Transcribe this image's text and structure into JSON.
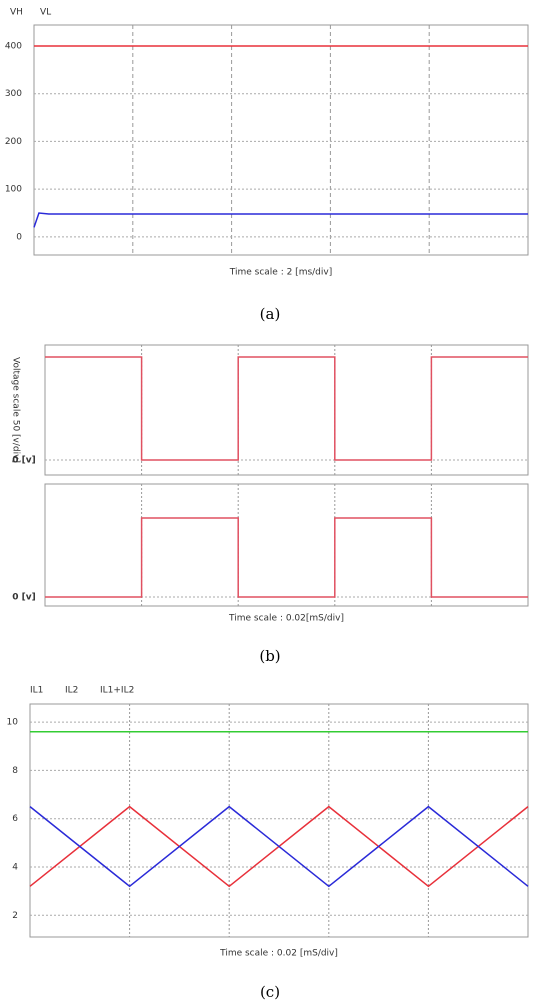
{
  "chart_data": [
    {
      "type": "line",
      "x": [
        0,
        0.05,
        0.15,
        5
      ],
      "xlim": [
        0,
        5
      ],
      "ylim": [
        -38,
        444
      ],
      "yticks": [
        0,
        100,
        200,
        300,
        400
      ],
      "grid": true,
      "legend": "top-left",
      "series": [
        {
          "name": "VH",
          "color": "#e8303a",
          "values": [
            400,
            400,
            400,
            400
          ]
        },
        {
          "name": "VL",
          "color": "#2a2ad8",
          "values": [
            20,
            50,
            48,
            48
          ]
        }
      ],
      "xlabel": "Time scale : 2 [ms/div]",
      "caption": "(a)"
    },
    {
      "type": "line",
      "x": [
        0,
        1,
        1,
        2,
        2,
        3,
        3,
        4,
        4,
        5
      ],
      "xlim": [
        0,
        5
      ],
      "ylim": [
        -14.6,
        111.7
      ],
      "yticks": [
        {
          "value": 0,
          "label": "0 [v]"
        }
      ],
      "grid": true,
      "series": [
        {
          "color": "#e05060",
          "values": [
            100,
            100,
            0,
            0,
            100,
            100,
            0,
            0,
            100,
            100
          ]
        }
      ],
      "ylabel": "Voltage scale 50 [v/div]"
    },
    {
      "type": "line",
      "x": [
        0,
        1,
        1,
        2,
        2,
        3,
        3,
        4,
        4,
        5
      ],
      "xlim": [
        0,
        5
      ],
      "ylim": [
        -11.4,
        143
      ],
      "yticks": [
        {
          "value": 0,
          "label": "0 [v]"
        }
      ],
      "grid": true,
      "series": [
        {
          "color": "#e05060",
          "values": [
            0,
            0,
            100,
            100,
            0,
            0,
            100,
            100,
            0,
            0
          ]
        }
      ],
      "xlabel": "Time scale : 0.02[mS/div]",
      "caption": "(b)"
    },
    {
      "type": "line",
      "x": [
        0,
        1,
        2,
        3,
        4,
        5
      ],
      "xlim": [
        0,
        5
      ],
      "ylim": [
        1.1,
        10.75
      ],
      "yticks": [
        2,
        4,
        6,
        8,
        10
      ],
      "grid": true,
      "legend": "top-left",
      "series": [
        {
          "name": "IL1",
          "color": "#e8303a",
          "values": [
            3.2,
            6.5,
            3.2,
            6.5,
            3.2,
            6.5
          ]
        },
        {
          "name": "IL2",
          "color": "#2a2ad8",
          "values": [
            6.5,
            3.2,
            6.5,
            3.2,
            6.5,
            3.2
          ]
        },
        {
          "name": "IL1+IL2",
          "color": "#33cc33",
          "values": [
            9.6,
            9.6,
            9.6,
            9.6,
            9.6,
            9.6
          ]
        }
      ],
      "xlabel": "Time scale : 0.02 [mS/div]",
      "caption": "(c)"
    }
  ]
}
